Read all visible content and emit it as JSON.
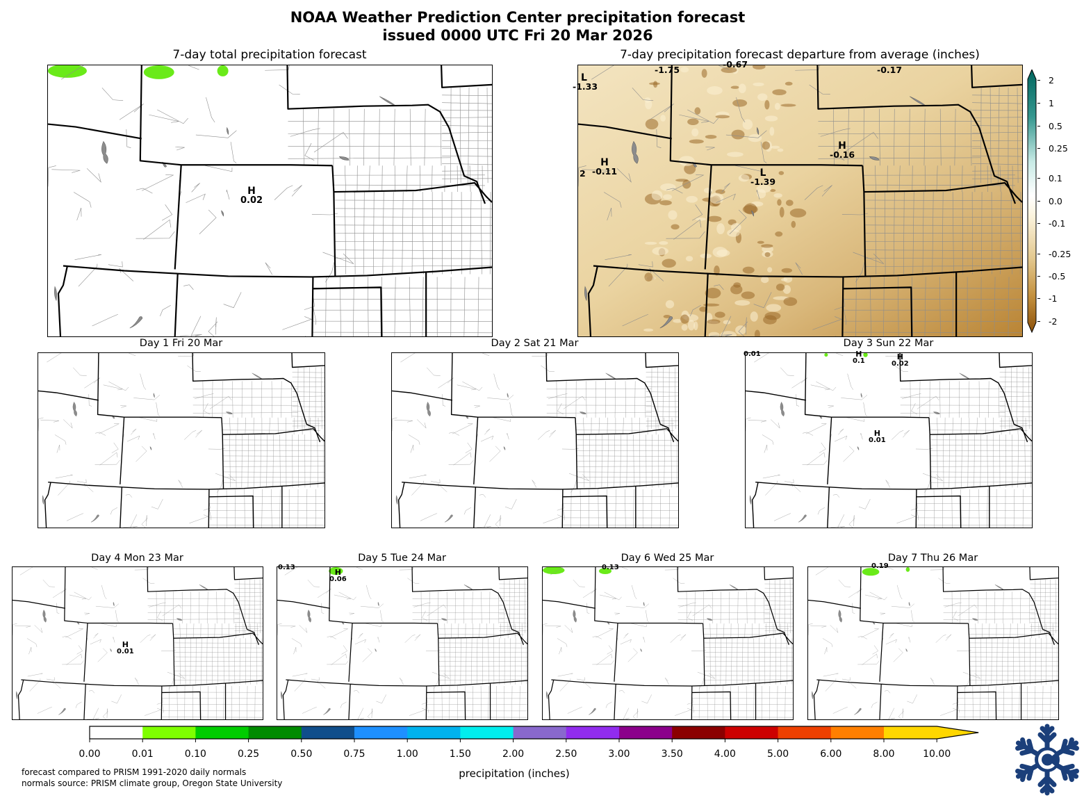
{
  "title": {
    "line1": "NOAA Weather Prediction Center precipitation forecast",
    "line2": "issued 0000 UTC Fri 20 Mar 2026"
  },
  "total_panel": {
    "title": "7-day total precipitation forecast",
    "markers": [
      {
        "symbol": "H",
        "value": "0.02"
      }
    ]
  },
  "departure_panel": {
    "title": "7-day precipitation forecast departure from average (inches)",
    "colorbar_ticks": [
      "2",
      "1",
      "0.5",
      "0.25",
      "0.1",
      "0.0",
      "-0.1",
      "-0.25",
      "-0.5",
      "-1",
      "-2"
    ],
    "markers": [
      {
        "symbol": "",
        "value": "-1.75"
      },
      {
        "symbol": "",
        "value": "-0.67"
      },
      {
        "symbol": "",
        "value": "-0.17"
      },
      {
        "symbol": "L",
        "value": "-1.33"
      },
      {
        "symbol": "H",
        "value": "-0.11"
      },
      {
        "symbol": "",
        "value": "2"
      },
      {
        "symbol": "H",
        "value": "-0.16"
      },
      {
        "symbol": "L",
        "value": "-1.39"
      }
    ]
  },
  "day_panels": [
    {
      "title": "Day 1  Fri 20 Mar",
      "markers": []
    },
    {
      "title": "Day 2  Sat 21 Mar",
      "markers": []
    },
    {
      "title": "Day 3  Sun 22 Mar",
      "markers": [
        {
          "symbol": "",
          "value": "0.01"
        },
        {
          "symbol": "H",
          "value": "0.1"
        },
        {
          "symbol": "H",
          "value": "0.02"
        },
        {
          "symbol": "H",
          "value": "0.01"
        }
      ]
    },
    {
      "title": "Day 4  Mon 23 Mar",
      "markers": [
        {
          "symbol": "H",
          "value": "0.01"
        }
      ]
    },
    {
      "title": "Day 5  Tue 24 Mar",
      "markers": [
        {
          "symbol": "",
          "value": "0.13"
        },
        {
          "symbol": "H",
          "value": "0.06"
        }
      ]
    },
    {
      "title": "Day 6  Wed 25 Mar",
      "markers": [
        {
          "symbol": "",
          "value": "0.13"
        }
      ]
    },
    {
      "title": "Day 7  Thu 26 Mar",
      "markers": [
        {
          "symbol": "",
          "value": "0.19"
        }
      ]
    }
  ],
  "precip_colorbar": {
    "label": "precipitation (inches)",
    "ticks": [
      "0.00",
      "0.01",
      "0.10",
      "0.25",
      "0.50",
      "0.75",
      "1.00",
      "1.50",
      "2.00",
      "2.50",
      "3.00",
      "3.50",
      "4.00",
      "5.00",
      "6.00",
      "8.00",
      "10.00"
    ],
    "colors": [
      "#ffffff",
      "#7fff00",
      "#00cd00",
      "#008b00",
      "#104e8b",
      "#1e90ff",
      "#00b2ee",
      "#00eeee",
      "#8968cd",
      "#912cee",
      "#8b008b",
      "#8b0000",
      "#cd0000",
      "#ee4000",
      "#ff7f00",
      "#ffd700"
    ]
  },
  "departure_colors": {
    "dry_dark": "#a46a1f",
    "dry_mid": "#d2ad6e",
    "dry_light": "#f3e4c0",
    "neutral": "#ffffff",
    "wet_light": "#c7e9e5",
    "wet_dark": "#01665e"
  },
  "footnote": {
    "line1": "forecast compared to PRISM 1991-2020 daily normals",
    "line2": "normals source: PRISM climate group, Oregon State University"
  },
  "logo": {
    "icon": "snowflake-logo-icon"
  }
}
